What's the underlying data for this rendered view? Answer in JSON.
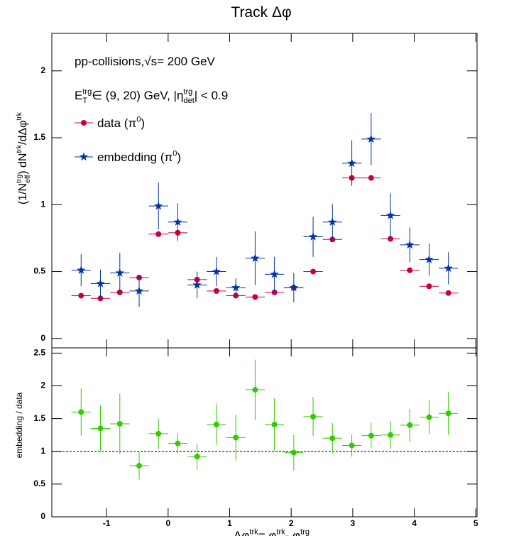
{
  "chart_data": [
    {
      "type": "errorbar",
      "title": "Track Δφ",
      "annotations": [
        [
          "pp-collisions, ",
          "√s",
          " = 200 GeV"
        ],
        [
          "E",
          {
            "sup": "trg",
            "sub": "T"
          },
          " ∈ (9, 20) GeV, |η",
          {
            "sup": "trg",
            "sub": "det"
          },
          "| < 0.9"
        ]
      ],
      "ylabel": [
        "(1/N",
        {
          "sup": "trg",
          "sub": "eff"
        },
        ") dN",
        {
          "sup": "trk"
        },
        "/dΔφ",
        {
          "sup": "trk"
        }
      ],
      "x": [
        -1.414,
        -1.1,
        -0.785,
        -0.471,
        -0.157,
        0.157,
        0.471,
        0.785,
        1.1,
        1.414,
        1.728,
        2.042,
        2.356,
        2.67,
        2.985,
        3.299,
        3.613,
        3.927,
        4.241,
        4.555
      ],
      "xerr": 0.157,
      "xlim": [
        -1.89,
        5.02
      ],
      "xticks": [
        -1,
        0,
        1,
        2,
        3,
        4,
        5
      ],
      "ylim": [
        -0.07,
        2.28
      ],
      "yticks": [
        0,
        0.5,
        1,
        1.5,
        2
      ],
      "series": [
        {
          "name": [
            "data (π",
            {
              "sup": "0"
            },
            ")"
          ],
          "color": "#c8003c",
          "marker": "circle",
          "values": [
            0.32,
            0.3,
            0.345,
            0.455,
            0.78,
            0.79,
            0.44,
            0.355,
            0.32,
            0.31,
            0.345,
            0.38,
            0.5,
            0.74,
            1.2,
            1.2,
            0.745,
            0.51,
            0.39,
            0.34
          ]
        },
        {
          "name": [
            "embedding (π",
            {
              "sup": "0"
            },
            ")"
          ],
          "color": "#0032a0",
          "marker": "star",
          "values": [
            0.51,
            0.41,
            0.49,
            0.355,
            0.99,
            0.87,
            0.4,
            0.5,
            0.38,
            0.6,
            0.48,
            0.38,
            0.76,
            0.87,
            1.31,
            1.49,
            0.92,
            0.7,
            0.59,
            0.525
          ],
          "errors": [
            0.12,
            0.105,
            0.15,
            0.12,
            0.175,
            0.14,
            0.1,
            0.11,
            0.07,
            0.2,
            0.13,
            0.11,
            0.15,
            0.135,
            0.17,
            0.195,
            0.165,
            0.13,
            0.12,
            0.12
          ]
        }
      ]
    },
    {
      "type": "errorbar",
      "ylabel": [
        "embedding / data"
      ],
      "xlabel": [
        "Δφ",
        {
          "sup": "trk"
        },
        " = φ",
        {
          "sup": "trk"
        },
        " - φ",
        {
          "sup": "trg"
        }
      ],
      "x": [
        -1.414,
        -1.1,
        -0.785,
        -0.471,
        -0.157,
        0.157,
        0.471,
        0.785,
        1.1,
        1.414,
        1.728,
        2.042,
        2.356,
        2.67,
        2.985,
        3.299,
        3.613,
        3.927,
        4.241,
        4.555
      ],
      "xerr": 0.157,
      "xlim": [
        -1.89,
        5.02
      ],
      "xticks": [
        -1,
        0,
        1,
        2,
        3,
        4,
        5
      ],
      "ylim": [
        0,
        2.58
      ],
      "yticks": [
        0,
        0.5,
        1,
        1.5,
        2,
        2.5
      ],
      "reference": 1,
      "series": [
        {
          "color": "#33cc00",
          "marker": "circle",
          "values": [
            1.6,
            1.35,
            1.42,
            0.78,
            1.27,
            1.12,
            0.92,
            1.41,
            1.21,
            1.94,
            1.41,
            0.98,
            1.53,
            1.2,
            1.09,
            1.24,
            1.25,
            1.4,
            1.52,
            1.58
          ],
          "errors": [
            0.36,
            0.35,
            0.46,
            0.21,
            0.23,
            0.15,
            0.2,
            0.31,
            0.35,
            0.46,
            0.4,
            0.27,
            0.3,
            0.23,
            0.17,
            0.19,
            0.21,
            0.25,
            0.26,
            0.33
          ]
        }
      ]
    }
  ]
}
